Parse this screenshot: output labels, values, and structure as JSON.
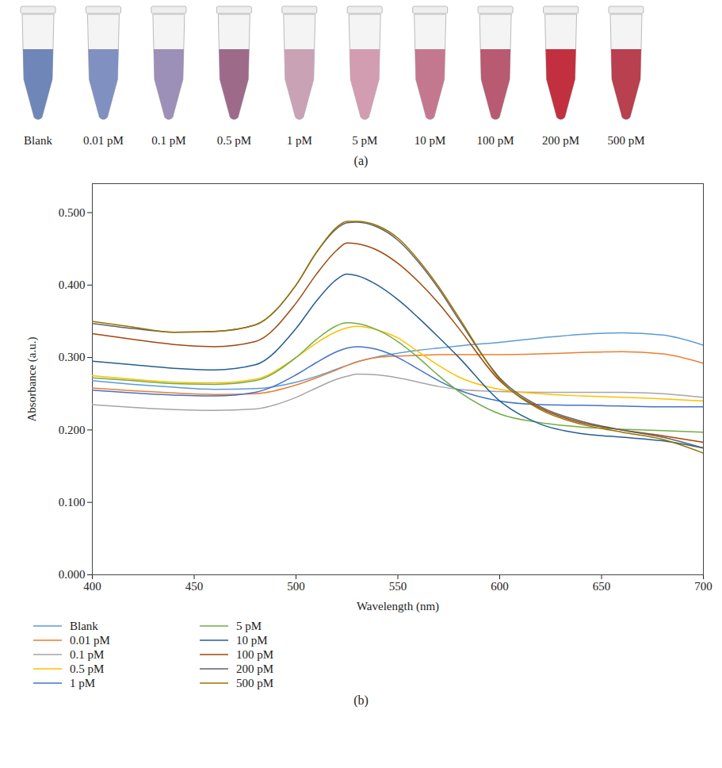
{
  "chart_data": [
    {
      "type": "image",
      "title": "(a)",
      "categories": [
        "Blank",
        "0.01 pM",
        "0.1 pM",
        "0.5 pM",
        "1 pM",
        "5 pM",
        "10 pM",
        "100 pM",
        "200 pM",
        "500 pM"
      ],
      "colors": [
        "#6e86b8",
        "#8090c0",
        "#9c8fb8",
        "#9e6a8a",
        "#c9a2b5",
        "#d29db0",
        "#c4788f",
        "#b85a72",
        "#c2303f",
        "#b8404f"
      ]
    },
    {
      "type": "line",
      "title": "(b)",
      "x_label": "Wavelength (nm)",
      "y_label": "Absorbance (a.u.)",
      "xlim": [
        400,
        700
      ],
      "xticks": [
        400,
        450,
        500,
        550,
        600,
        650,
        700
      ],
      "ylim": [
        0,
        0.54
      ],
      "yticks": [
        {
          "value": 0,
          "label": "0.000"
        },
        {
          "value": 0.1,
          "label": "0.100"
        },
        {
          "value": 0.2,
          "label": "0.200"
        },
        {
          "value": 0.3,
          "label": "0.300"
        },
        {
          "value": 0.4,
          "label": "0.400"
        },
        {
          "value": 0.5,
          "label": "0.500"
        }
      ],
      "grid": false,
      "legend": "bottom",
      "x": [
        400,
        420,
        440,
        460,
        480,
        500,
        510,
        520,
        525,
        530,
        540,
        550,
        560,
        570,
        580,
        600,
        620,
        640,
        660,
        680,
        700
      ],
      "series": [
        {
          "name": "Blank",
          "color": "#5b9bd5",
          "values": [
            0.268,
            0.263,
            0.259,
            0.256,
            0.257,
            0.266,
            0.274,
            0.284,
            0.289,
            0.294,
            0.301,
            0.306,
            0.31,
            0.313,
            0.316,
            0.321,
            0.327,
            0.332,
            0.334,
            0.331,
            0.317
          ]
        },
        {
          "name": "0.01 pM",
          "color": "#ed7d31",
          "values": [
            0.258,
            0.254,
            0.251,
            0.249,
            0.25,
            0.262,
            0.272,
            0.283,
            0.289,
            0.294,
            0.3,
            0.302,
            0.303,
            0.304,
            0.304,
            0.304,
            0.305,
            0.307,
            0.308,
            0.305,
            0.292
          ]
        },
        {
          "name": "0.1 pM",
          "color": "#a5a5a5",
          "values": [
            0.235,
            0.231,
            0.228,
            0.227,
            0.229,
            0.245,
            0.258,
            0.27,
            0.274,
            0.277,
            0.276,
            0.272,
            0.266,
            0.26,
            0.256,
            0.253,
            0.252,
            0.252,
            0.252,
            0.25,
            0.245
          ]
        },
        {
          "name": "0.5 pM",
          "color": "#ffc000",
          "values": [
            0.275,
            0.27,
            0.266,
            0.265,
            0.27,
            0.3,
            0.32,
            0.336,
            0.341,
            0.343,
            0.338,
            0.327,
            0.308,
            0.289,
            0.273,
            0.256,
            0.25,
            0.247,
            0.245,
            0.243,
            0.24
          ]
        },
        {
          "name": "1 pM",
          "color": "#4472c4",
          "values": [
            0.255,
            0.251,
            0.248,
            0.247,
            0.252,
            0.276,
            0.293,
            0.308,
            0.313,
            0.315,
            0.311,
            0.3,
            0.284,
            0.268,
            0.255,
            0.24,
            0.235,
            0.234,
            0.233,
            0.232,
            0.232
          ]
        },
        {
          "name": "5 pM",
          "color": "#70ad47",
          "values": [
            0.272,
            0.268,
            0.264,
            0.263,
            0.268,
            0.3,
            0.325,
            0.344,
            0.348,
            0.347,
            0.338,
            0.322,
            0.3,
            0.275,
            0.253,
            0.222,
            0.21,
            0.204,
            0.201,
            0.199,
            0.197
          ]
        },
        {
          "name": "10 pM",
          "color": "#255e91",
          "values": [
            0.295,
            0.29,
            0.285,
            0.283,
            0.29,
            0.34,
            0.378,
            0.408,
            0.415,
            0.413,
            0.4,
            0.38,
            0.355,
            0.328,
            0.3,
            0.24,
            0.208,
            0.195,
            0.19,
            0.185,
            0.175
          ]
        },
        {
          "name": "100 pM",
          "color": "#9e480e",
          "values": [
            0.333,
            0.325,
            0.318,
            0.315,
            0.322,
            0.375,
            0.415,
            0.448,
            0.458,
            0.457,
            0.448,
            0.43,
            0.405,
            0.375,
            0.34,
            0.268,
            0.23,
            0.21,
            0.2,
            0.192,
            0.183
          ]
        },
        {
          "name": "200 pM",
          "color": "#636363",
          "values": [
            0.347,
            0.34,
            0.335,
            0.336,
            0.345,
            0.4,
            0.445,
            0.478,
            0.486,
            0.487,
            0.48,
            0.462,
            0.432,
            0.395,
            0.352,
            0.272,
            0.232,
            0.212,
            0.2,
            0.19,
            0.175
          ]
        },
        {
          "name": "500 pM",
          "color": "#997300",
          "values": [
            0.35,
            0.342,
            0.335,
            0.336,
            0.345,
            0.4,
            0.445,
            0.48,
            0.488,
            0.488,
            0.482,
            0.465,
            0.435,
            0.398,
            0.355,
            0.27,
            0.228,
            0.208,
            0.197,
            0.187,
            0.168
          ]
        }
      ]
    }
  ]
}
